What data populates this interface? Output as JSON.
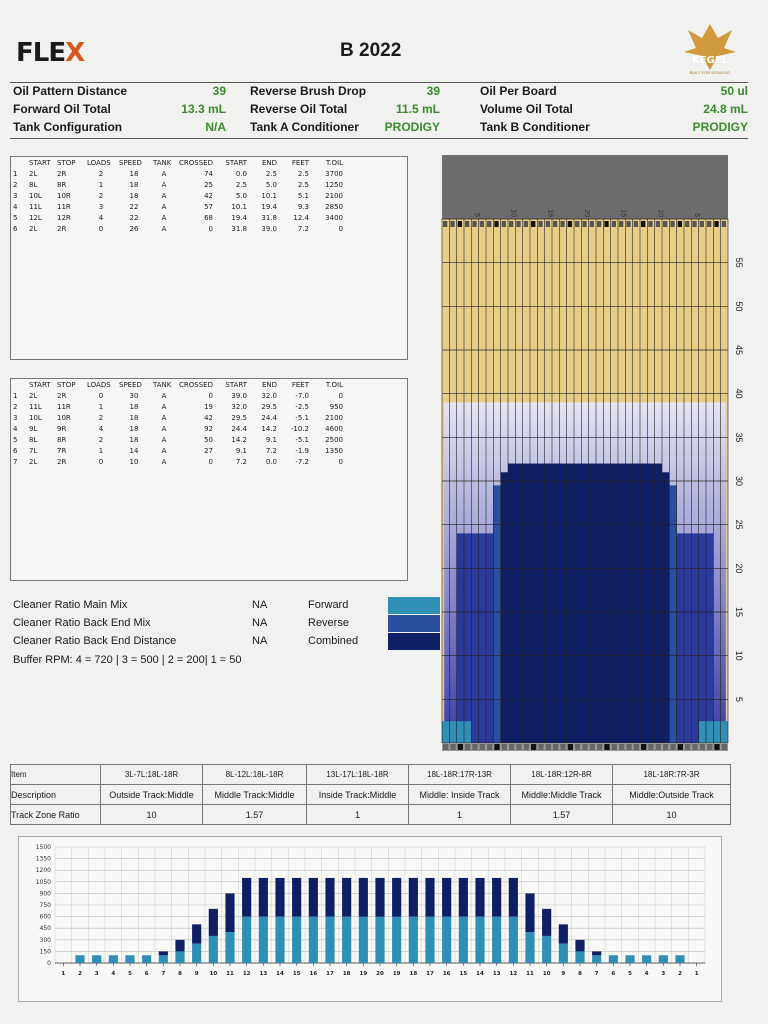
{
  "header": {
    "logo_main": "FLE",
    "logo_x": "X",
    "title": "B 2022",
    "kegel_brand": "KEGEL",
    "kegel_tagline": "BUILT FOR BOWLING"
  },
  "pattern_info": [
    {
      "label": "Oil Pattern Distance",
      "value": "39"
    },
    {
      "label": "Reverse Brush Drop",
      "value": "39"
    },
    {
      "label": "Oil Per Board",
      "value": "50 ul"
    },
    {
      "label": "Forward Oil Total",
      "value": "13.3 mL"
    },
    {
      "label": "Reverse Oil Total",
      "value": "11.5 mL"
    },
    {
      "label": "Volume Oil Total",
      "value": "24.8 mL"
    },
    {
      "label": "Tank Configuration",
      "value": "N/A"
    },
    {
      "label": "Tank A Conditioner",
      "value": "PRODIGY"
    },
    {
      "label": "Tank B Conditioner",
      "value": "PRODIGY"
    }
  ],
  "table_headers": [
    "START",
    "STOP",
    "LOADS",
    "SPEED",
    "TANK",
    "CROSSED",
    "START",
    "END",
    "FEET",
    "T.OIL"
  ],
  "forward_steps": [
    [
      "1",
      "2L",
      "2R",
      "2",
      "18",
      "A",
      "74",
      "0.0",
      "2.5",
      "2.5",
      "3700"
    ],
    [
      "2",
      "8L",
      "8R",
      "1",
      "18",
      "A",
      "25",
      "2.5",
      "5.0",
      "2.5",
      "1250"
    ],
    [
      "3",
      "10L",
      "10R",
      "2",
      "18",
      "A",
      "42",
      "5.0",
      "10.1",
      "5.1",
      "2100"
    ],
    [
      "4",
      "11L",
      "11R",
      "3",
      "22",
      "A",
      "57",
      "10.1",
      "19.4",
      "9.3",
      "2850"
    ],
    [
      "5",
      "12L",
      "12R",
      "4",
      "22",
      "A",
      "68",
      "19.4",
      "31.8",
      "12.4",
      "3400"
    ],
    [
      "6",
      "2L",
      "2R",
      "0",
      "26",
      "A",
      "0",
      "31.8",
      "39.0",
      "7.2",
      "0"
    ]
  ],
  "reverse_steps": [
    [
      "1",
      "2L",
      "2R",
      "0",
      "30",
      "A",
      "0",
      "39.0",
      "32.0",
      "-7.0",
      "0"
    ],
    [
      "2",
      "11L",
      "11R",
      "1",
      "18",
      "A",
      "19",
      "32.0",
      "29.5",
      "-2.5",
      "950"
    ],
    [
      "3",
      "10L",
      "10R",
      "2",
      "18",
      "A",
      "42",
      "29.5",
      "24.4",
      "-5.1",
      "2100"
    ],
    [
      "4",
      "9L",
      "9R",
      "4",
      "18",
      "A",
      "92",
      "24.4",
      "14.2",
      "-10.2",
      "4600"
    ],
    [
      "5",
      "8L",
      "8R",
      "2",
      "18",
      "A",
      "50",
      "14.2",
      "9.1",
      "-5.1",
      "2500"
    ],
    [
      "6",
      "7L",
      "7R",
      "1",
      "14",
      "A",
      "27",
      "9.1",
      "7.2",
      "-1.9",
      "1350"
    ],
    [
      "7",
      "2L",
      "2R",
      "0",
      "10",
      "A",
      "0",
      "7.2",
      "0.0",
      "-7.2",
      "0"
    ]
  ],
  "cleaner": [
    {
      "label": "Cleaner Ratio Main Mix",
      "value": "NA",
      "legend": "Forward",
      "color": "#2f8fb6"
    },
    {
      "label": "Cleaner Ratio Back End Mix",
      "value": "NA",
      "legend": "Reverse",
      "color": "#2a4f9c"
    },
    {
      "label": "Cleaner Ratio Back End Distance",
      "value": "NA",
      "legend": "Combined",
      "color": "#0f1f66"
    }
  ],
  "buffer_rpm": "Buffer RPM: 4 = 720 | 3 = 500 | 2 = 200| 1 = 50",
  "lane_graph": {
    "feet_labels": [
      "5",
      "10",
      "15",
      "20",
      "25",
      "30",
      "35",
      "40",
      "45",
      "50",
      "55"
    ],
    "top_markers": [
      "5",
      "10",
      "15",
      "20",
      "15",
      "10",
      "5"
    ],
    "oil_distance_ft": 39,
    "colors": {
      "dry": "#e8cd86",
      "light": "#c9c9e8",
      "forward": "#2f8fb6",
      "reverse": "#2a4f9c",
      "combined": "#0f1f66"
    }
  },
  "track_table": {
    "headers": [
      "Item",
      "3L-7L:18L-18R",
      "8L-12L:18L-18R",
      "13L-17L:18L-18R",
      "18L-18R:17R-13R",
      "18L-18R:12R-8R",
      "18L-18R:7R-3R"
    ],
    "descriptions": [
      "Description",
      "Outside Track:Middle",
      "Middle Track:Middle",
      "Inside Track:Middle",
      "Middle: Inside Track",
      "Middle:Middle Track",
      "Middle:Outside Track"
    ],
    "ratios": [
      "Track Zone Ratio",
      "10",
      "1.57",
      "1",
      "1",
      "1.57",
      "10"
    ]
  },
  "chart_data": {
    "type": "bar",
    "yticks": [
      "1500",
      "1350",
      "1200",
      "1050",
      "900",
      "750",
      "600",
      "450",
      "300",
      "150",
      "0"
    ],
    "ylim": [
      0,
      1500
    ],
    "categories": [
      "1",
      "2",
      "3",
      "4",
      "5",
      "6",
      "7",
      "8",
      "9",
      "10",
      "11",
      "12",
      "13",
      "14",
      "15",
      "16",
      "17",
      "18",
      "19",
      "20",
      "19",
      "18",
      "17",
      "16",
      "15",
      "14",
      "13",
      "12",
      "11",
      "10",
      "9",
      "8",
      "7",
      "6",
      "5",
      "4",
      "3",
      "2",
      "1"
    ],
    "series": [
      {
        "name": "Forward",
        "values": [
          0,
          100,
          100,
          100,
          100,
          100,
          100,
          150,
          250,
          350,
          400,
          600,
          600,
          600,
          600,
          600,
          600,
          600,
          600,
          600,
          600,
          600,
          600,
          600,
          600,
          600,
          600,
          600,
          400,
          350,
          250,
          150,
          100,
          100,
          100,
          100,
          100,
          100,
          0
        ]
      },
      {
        "name": "Reverse",
        "values": [
          0,
          0,
          0,
          0,
          0,
          0,
          50,
          150,
          250,
          350,
          500,
          500,
          500,
          500,
          500,
          500,
          500,
          500,
          500,
          500,
          500,
          500,
          500,
          500,
          500,
          500,
          500,
          500,
          500,
          350,
          250,
          150,
          50,
          0,
          0,
          0,
          0,
          0,
          0
        ]
      }
    ],
    "colors": [
      "#2f8fb6",
      "#0f1f66"
    ]
  }
}
